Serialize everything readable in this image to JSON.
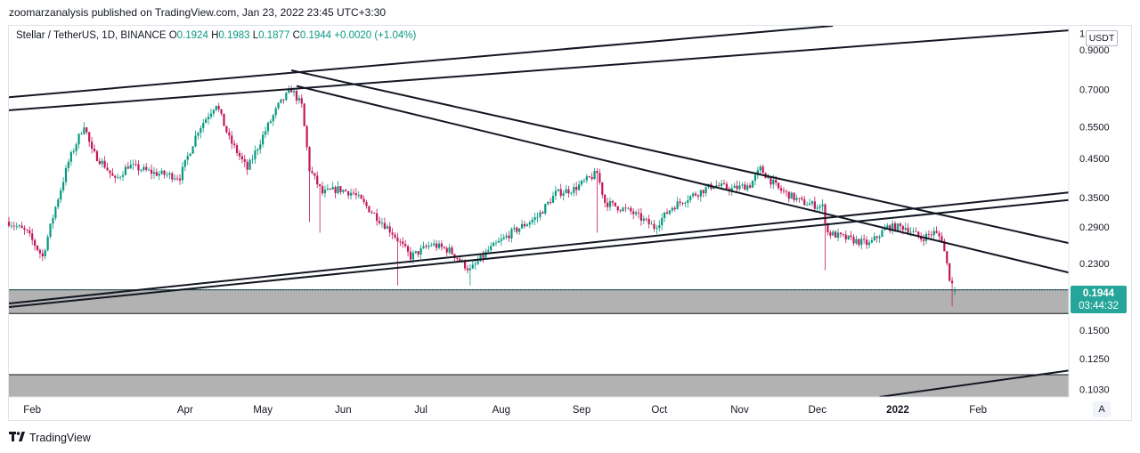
{
  "header": {
    "publish_line": "zoomarzanalysis published on TradingView.com, Jan 23, 2022 23:45 UTC+3:30"
  },
  "legend": {
    "symbol": "Stellar / TetherUS, 1D, BINANCE",
    "open_label": "O",
    "open": "0.1924",
    "high_label": "H",
    "high": "0.1983",
    "low_label": "L",
    "low": "0.1877",
    "close_label": "C",
    "close": "0.1944",
    "change": "+0.0020 (+1.04%)"
  },
  "price_scale": {
    "currency": "USDT",
    "auto_label": "A"
  },
  "last_price": {
    "value": "0.1944",
    "countdown": "03:44:32"
  },
  "footer": {
    "brand": "TradingView"
  },
  "colors": {
    "up": "#089981",
    "down": "#c2185b",
    "tag": "#26a69a",
    "zone": "#b2b2b2"
  },
  "chart_data": {
    "type": "candlestick",
    "scale": "log",
    "y_tick_labels": [
      "1",
      "0.9000",
      "0.7000",
      "0.5500",
      "0.4500",
      "0.3500",
      "0.2900",
      "0.2300",
      "0.1500",
      "0.1250",
      "0.1030"
    ],
    "y_tick_values": [
      1.0,
      0.9,
      0.7,
      0.55,
      0.45,
      0.35,
      0.29,
      0.23,
      0.15,
      0.125,
      0.103
    ],
    "ylim": [
      0.098,
      1.05
    ],
    "x_range": [
      "2021-01-23",
      "2022-03-08"
    ],
    "x_tick_labels": [
      "Feb",
      "Apr",
      "May",
      "Jun",
      "Jul",
      "Aug",
      "Sep",
      "Oct",
      "Nov",
      "Dec",
      "2022",
      "Feb"
    ],
    "x_tick_dates": [
      "2021-02-01",
      "2021-04-01",
      "2021-05-01",
      "2021-06-01",
      "2021-07-01",
      "2021-08-01",
      "2021-09-01",
      "2021-10-01",
      "2021-11-01",
      "2021-12-01",
      "2022-01-01",
      "2022-02-01"
    ],
    "candle_range": [
      "2021-01-23",
      "2022-01-23"
    ],
    "price_path": [
      [
        "2021-01-23",
        0.3
      ],
      [
        "2021-01-30",
        0.28
      ],
      [
        "2021-02-05",
        0.24
      ],
      [
        "2021-02-10",
        0.33
      ],
      [
        "2021-02-15",
        0.44
      ],
      [
        "2021-02-21",
        0.56
      ],
      [
        "2021-02-24",
        0.47
      ],
      [
        "2021-03-01",
        0.43
      ],
      [
        "2021-03-05",
        0.39
      ],
      [
        "2021-03-10",
        0.43
      ],
      [
        "2021-03-20",
        0.41
      ],
      [
        "2021-03-30",
        0.4
      ],
      [
        "2021-04-06",
        0.54
      ],
      [
        "2021-04-13",
        0.64
      ],
      [
        "2021-04-18",
        0.51
      ],
      [
        "2021-04-25",
        0.42
      ],
      [
        "2021-05-01",
        0.52
      ],
      [
        "2021-05-07",
        0.63
      ],
      [
        "2021-05-12",
        0.7
      ],
      [
        "2021-05-16",
        0.63
      ],
      [
        "2021-05-19",
        0.42
      ],
      [
        "2021-05-24",
        0.36
      ],
      [
        "2021-05-30",
        0.37
      ],
      [
        "2021-06-05",
        0.36
      ],
      [
        "2021-06-12",
        0.32
      ],
      [
        "2021-06-20",
        0.28
      ],
      [
        "2021-06-27",
        0.24
      ],
      [
        "2021-07-05",
        0.26
      ],
      [
        "2021-07-12",
        0.25
      ],
      [
        "2021-07-20",
        0.22
      ],
      [
        "2021-07-27",
        0.25
      ],
      [
        "2021-08-05",
        0.28
      ],
      [
        "2021-08-15",
        0.31
      ],
      [
        "2021-08-22",
        0.36
      ],
      [
        "2021-08-29",
        0.37
      ],
      [
        "2021-09-07",
        0.41
      ],
      [
        "2021-09-10",
        0.34
      ],
      [
        "2021-09-20",
        0.32
      ],
      [
        "2021-09-29",
        0.29
      ],
      [
        "2021-10-06",
        0.33
      ],
      [
        "2021-10-12",
        0.35
      ],
      [
        "2021-10-22",
        0.38
      ],
      [
        "2021-10-29",
        0.37
      ],
      [
        "2021-11-05",
        0.38
      ],
      [
        "2021-11-09",
        0.42
      ],
      [
        "2021-11-16",
        0.37
      ],
      [
        "2021-11-25",
        0.34
      ],
      [
        "2021-12-03",
        0.33
      ],
      [
        "2021-12-05",
        0.28
      ],
      [
        "2021-12-12",
        0.27
      ],
      [
        "2021-12-21",
        0.26
      ],
      [
        "2021-12-28",
        0.29
      ],
      [
        "2022-01-04",
        0.29
      ],
      [
        "2022-01-10",
        0.27
      ],
      [
        "2022-01-15",
        0.28
      ],
      [
        "2022-01-18",
        0.27
      ],
      [
        "2022-01-21",
        0.21
      ],
      [
        "2022-01-23",
        0.1944
      ]
    ],
    "wick_spikes": [
      [
        "2021-05-19",
        0.3
      ],
      [
        "2021-05-23",
        0.28
      ],
      [
        "2021-06-22",
        0.2
      ],
      [
        "2021-07-20",
        0.2
      ],
      [
        "2021-09-07",
        0.28
      ],
      [
        "2021-12-04",
        0.22
      ],
      [
        "2022-01-22",
        0.175
      ]
    ],
    "zones": [
      {
        "from_price": 0.167,
        "to_price": 0.1944
      },
      {
        "from_price": 0.098,
        "to_price": 0.113
      }
    ],
    "trendlines": [
      {
        "from": [
          "2021-01-23",
          0.665
        ],
        "to": [
          "2021-12-07",
          1.05
        ]
      },
      {
        "from": [
          "2021-01-23",
          0.612
        ],
        "to": [
          "2022-03-08",
          1.02
        ]
      },
      {
        "from": [
          "2021-05-12",
          0.79
        ],
        "to": [
          "2022-03-08",
          0.262
        ]
      },
      {
        "from": [
          "2021-05-14",
          0.715
        ],
        "to": [
          "2022-03-08",
          0.217
        ]
      },
      {
        "from": [
          "2021-01-23",
          0.178
        ],
        "to": [
          "2022-03-08",
          0.362
        ]
      },
      {
        "from": [
          "2021-01-23",
          0.174
        ],
        "to": [
          "2022-03-08",
          0.345
        ]
      },
      {
        "from": [
          "2021-12-25",
          0.098
        ],
        "to": [
          "2022-03-08",
          0.116
        ]
      }
    ]
  }
}
